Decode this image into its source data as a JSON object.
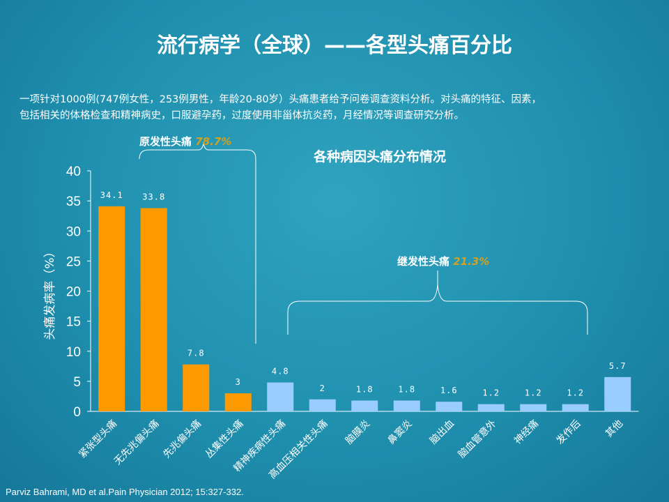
{
  "slide": {
    "title": "流行病学（全球）——各型头痛百分比",
    "intro_line1": "一项针对1000例(747例女性，253例男性，年龄20-80岁）头痛患者给予问卷调查资料分析。对头痛的特征、因素，",
    "intro_line2": "包括相关的体格检查和精神病史，口服避孕药，过度使用非甾体抗炎药，月经情况等调查研究分析。",
    "source": "Parviz Bahrami, MD et al.Pain Physician 2012; 15:327-332."
  },
  "annotations": {
    "primary_label": "原发性头痛",
    "primary_pct": "78.7%",
    "secondary_label": "继发性头痛",
    "secondary_pct": "21.3%"
  },
  "colors": {
    "primary": "#ff9900",
    "secondary": "#99ccff",
    "pct_accent": "#d4a020",
    "text": "#ffffff"
  },
  "chart_data": {
    "type": "bar",
    "title": "各种病因头痛分布情况",
    "ylabel": "头痛发病率（%）",
    "xlabel": "",
    "ylim": [
      0,
      40
    ],
    "yticks": [
      0,
      5,
      10,
      15,
      20,
      25,
      30,
      35,
      40
    ],
    "grid": false,
    "categories": [
      "紧张型头痛",
      "无先兆偏头痛",
      "先兆偏头痛",
      "丛集性头痛",
      "精神疾病性头痛",
      "高血压相关性头痛",
      "脑膜炎",
      "鼻窦炎",
      "脑出血",
      "脑血管意外",
      "神经痛",
      "发作后",
      "其他"
    ],
    "values": [
      34.1,
      33.8,
      7.8,
      3,
      4.8,
      2,
      1.8,
      1.8,
      1.6,
      1.2,
      1.2,
      1.2,
      5.7
    ],
    "value_labels": [
      "34.1",
      "33.8",
      "7.8",
      "3",
      "4.8",
      "2",
      "1.8",
      "1.8",
      "1.6",
      "1.2",
      "1.2",
      "1.2",
      "5.7"
    ],
    "groups": [
      "primary",
      "primary",
      "primary",
      "primary",
      "secondary",
      "secondary",
      "secondary",
      "secondary",
      "secondary",
      "secondary",
      "secondary",
      "secondary",
      "secondary"
    ]
  }
}
